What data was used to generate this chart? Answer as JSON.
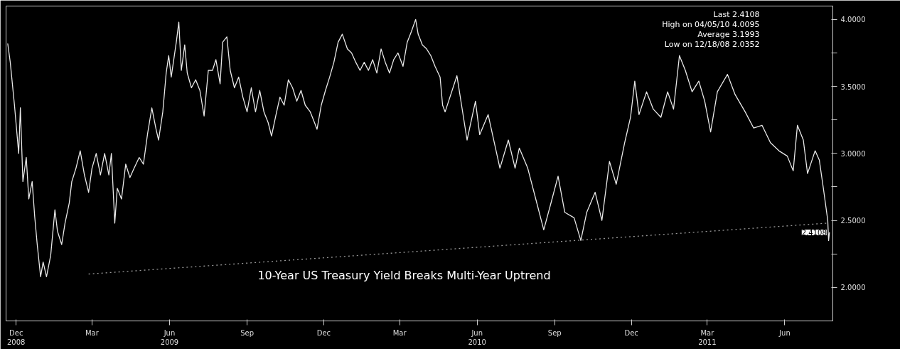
{
  "chart_data": {
    "type": "line",
    "x": [
      "2008-11-21",
      "2008-11-24",
      "2008-11-29",
      "2008-12-04",
      "2008-12-06",
      "2008-12-09",
      "2008-12-13",
      "2008-12-16",
      "2008-12-20",
      "2008-12-23",
      "2008-12-26",
      "2008-12-30",
      "2009-01-02",
      "2009-01-06",
      "2009-01-11",
      "2009-01-16",
      "2009-01-19",
      "2009-01-24",
      "2009-01-28",
      "2009-02-02",
      "2009-02-05",
      "2009-02-10",
      "2009-02-15",
      "2009-02-20",
      "2009-02-25",
      "2009-03-01",
      "2009-03-06",
      "2009-03-11",
      "2009-03-16",
      "2009-03-21",
      "2009-03-24",
      "2009-03-28",
      "2009-03-31",
      "2009-04-05",
      "2009-04-10",
      "2009-04-15",
      "2009-04-20",
      "2009-04-26",
      "2009-05-01",
      "2009-05-06",
      "2009-05-11",
      "2009-05-16",
      "2009-05-19",
      "2009-05-24",
      "2009-05-28",
      "2009-05-31",
      "2009-06-03",
      "2009-06-09",
      "2009-06-12",
      "2009-06-15",
      "2009-06-19",
      "2009-06-22",
      "2009-06-27",
      "2009-07-02",
      "2009-07-07",
      "2009-07-12",
      "2009-07-17",
      "2009-07-22",
      "2009-07-26",
      "2009-07-31",
      "2009-08-03",
      "2009-08-08",
      "2009-08-12",
      "2009-08-17",
      "2009-08-22",
      "2009-08-27",
      "2009-09-01",
      "2009-09-06",
      "2009-09-11",
      "2009-09-16",
      "2009-09-21",
      "2009-09-26",
      "2009-09-30",
      "2009-10-05",
      "2009-10-10",
      "2009-10-15",
      "2009-10-20",
      "2009-10-25",
      "2009-10-30",
      "2009-11-04",
      "2009-11-09",
      "2009-11-15",
      "2009-11-20",
      "2009-11-23",
      "2009-11-28",
      "2009-12-03",
      "2009-12-08",
      "2009-12-13",
      "2009-12-18",
      "2009-12-23",
      "2009-12-29",
      "2010-01-03",
      "2010-01-08",
      "2010-01-13",
      "2010-01-18",
      "2010-01-23",
      "2010-01-28",
      "2010-02-02",
      "2010-02-07",
      "2010-02-12",
      "2010-02-17",
      "2010-02-22",
      "2010-02-27",
      "2010-03-05",
      "2010-03-10",
      "2010-03-15",
      "2010-03-20",
      "2010-03-23",
      "2010-03-28",
      "2010-04-02",
      "2010-04-07",
      "2010-04-12",
      "2010-04-18",
      "2010-04-21",
      "2010-04-24",
      "2010-05-08",
      "2010-05-20",
      "2010-05-30",
      "2010-06-04",
      "2010-06-14",
      "2010-06-28",
      "2010-07-08",
      "2010-07-16",
      "2010-07-21",
      "2010-07-31",
      "2010-08-12",
      "2010-08-19",
      "2010-08-28",
      "2010-09-05",
      "2010-09-13",
      "2010-09-24",
      "2010-10-02",
      "2010-10-09",
      "2010-10-19",
      "2010-10-27",
      "2010-11-05",
      "2010-11-13",
      "2010-11-23",
      "2010-11-30",
      "2010-12-05",
      "2010-12-10",
      "2010-12-19",
      "2010-12-27",
      "2011-01-05",
      "2011-01-13",
      "2011-01-20",
      "2011-01-27",
      "2011-02-03",
      "2011-02-11",
      "2011-02-19",
      "2011-02-26",
      "2011-03-05",
      "2011-03-13",
      "2011-03-25",
      "2011-04-03",
      "2011-04-15",
      "2011-04-25",
      "2011-05-05",
      "2011-05-15",
      "2011-05-25",
      "2011-06-04",
      "2011-06-11",
      "2011-06-16",
      "2011-06-23",
      "2011-06-28",
      "2011-07-07",
      "2011-07-12",
      "2011-07-17",
      "2011-07-22",
      "2011-07-23",
      "2011-07-24"
    ],
    "series": [
      {
        "color": "#e8e8e8",
        "values": [
          3.82,
          3.68,
          3.36,
          3.0,
          3.34,
          2.79,
          2.97,
          2.66,
          2.79,
          2.53,
          2.32,
          2.08,
          2.19,
          2.08,
          2.24,
          2.58,
          2.42,
          2.32,
          2.48,
          2.63,
          2.79,
          2.89,
          3.02,
          2.84,
          2.71,
          2.89,
          3.0,
          2.84,
          3.0,
          2.84,
          3.0,
          2.48,
          2.74,
          2.66,
          2.92,
          2.82,
          2.89,
          2.97,
          2.92,
          3.15,
          3.34,
          3.18,
          3.1,
          3.31,
          3.6,
          3.73,
          3.57,
          3.83,
          3.98,
          3.62,
          3.81,
          3.6,
          3.49,
          3.55,
          3.47,
          3.28,
          3.62,
          3.62,
          3.7,
          3.52,
          3.83,
          3.87,
          3.62,
          3.49,
          3.57,
          3.42,
          3.31,
          3.49,
          3.31,
          3.47,
          3.31,
          3.23,
          3.13,
          3.28,
          3.42,
          3.36,
          3.55,
          3.49,
          3.39,
          3.47,
          3.36,
          3.31,
          3.23,
          3.18,
          3.36,
          3.47,
          3.57,
          3.68,
          3.83,
          3.89,
          3.78,
          3.75,
          3.68,
          3.62,
          3.68,
          3.62,
          3.7,
          3.6,
          3.78,
          3.68,
          3.6,
          3.7,
          3.75,
          3.65,
          3.83,
          3.91,
          4.0,
          3.89,
          3.81,
          3.78,
          3.73,
          3.65,
          3.57,
          3.36,
          3.31,
          3.58,
          3.1,
          3.39,
          3.14,
          3.29,
          2.89,
          3.1,
          2.89,
          3.04,
          2.89,
          2.6,
          2.43,
          2.64,
          2.83,
          2.56,
          2.52,
          2.35,
          2.56,
          2.71,
          2.5,
          2.94,
          2.77,
          3.08,
          3.27,
          3.54,
          3.29,
          3.46,
          3.33,
          3.27,
          3.46,
          3.33,
          3.73,
          3.62,
          3.46,
          3.54,
          3.39,
          3.16,
          3.46,
          3.59,
          3.44,
          3.31,
          3.19,
          3.21,
          3.08,
          3.02,
          2.98,
          2.87,
          3.21,
          3.1,
          2.85,
          3.02,
          2.95,
          2.73,
          2.5,
          2.35,
          2.4108
        ]
      },
      {
        "type": "line",
        "color": "#9a9a9a",
        "line_style": "dotted",
        "x": [
          "2009-02-25",
          "2011-07-22"
        ],
        "values": [
          2.1,
          2.48
        ]
      }
    ],
    "xlim": [
      "2008-11-19",
      "2011-07-28"
    ],
    "xticks": [
      {
        "value": "2008-12-01",
        "label": "Dec\n2008"
      },
      {
        "value": "2009-03-01",
        "label": "Mar"
      },
      {
        "value": "2009-06-01",
        "label": "Jun\n2009"
      },
      {
        "value": "2009-09-01",
        "label": "Sep"
      },
      {
        "value": "2009-12-01",
        "label": "Dec"
      },
      {
        "value": "2010-03-01",
        "label": "Mar"
      },
      {
        "value": "2010-06-01",
        "label": "Jun\n2010"
      },
      {
        "value": "2010-09-01",
        "label": "Sep"
      },
      {
        "value": "2010-12-01",
        "label": "Dec"
      },
      {
        "value": "2011-03-01",
        "label": "Mar\n2011"
      },
      {
        "value": "2011-06-01",
        "label": "Jun"
      }
    ],
    "ylim": [
      1.75,
      4.1
    ],
    "yticks": [
      {
        "value": 2.0,
        "label": "2.0000"
      },
      {
        "value": 2.25,
        "label": null
      },
      {
        "value": 2.5,
        "label": "2.5000"
      },
      {
        "value": 2.75,
        "label": null
      },
      {
        "value": 3.0,
        "label": "3.0000"
      },
      {
        "value": 3.25,
        "label": null
      },
      {
        "value": 3.5,
        "label": "3.5000"
      },
      {
        "value": 3.75,
        "label": null
      },
      {
        "value": 4.0,
        "label": "4.0000"
      }
    ],
    "grid": false,
    "annotations": [
      "Last 2.4108",
      "High on 04/05/10 4.0095",
      "Average 3.1993",
      "Low on 12/18/08 2.0352",
      {
        "text": "2.4108",
        "x": "2011-07-24",
        "y": 2.4108
      },
      "10-Year US Treasury Yield Breaks Multi-Year Uptrend"
    ]
  }
}
